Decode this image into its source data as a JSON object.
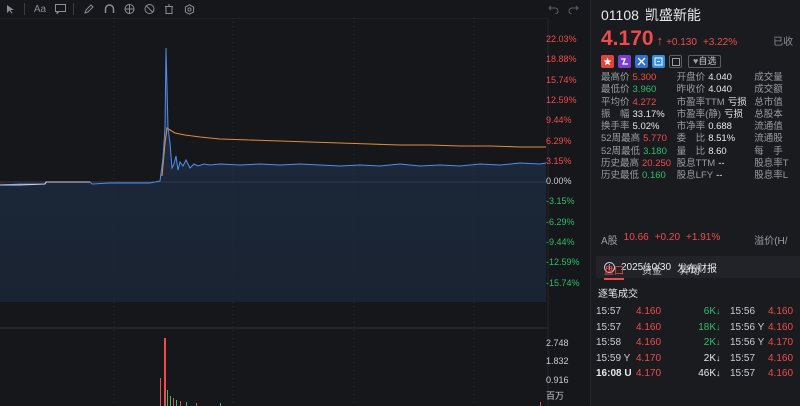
{
  "toolbar": {
    "icons": [
      "cursor-icon",
      "text-icon",
      "comment-icon",
      "pen-icon",
      "magnet-icon",
      "eye-icon",
      "hide-icon",
      "trash-icon",
      "settings-icon"
    ],
    "aa_label": "Aa"
  },
  "chart": {
    "pct_labels": [
      {
        "text": "22.03%",
        "color": "#f04b4b"
      },
      {
        "text": "18.88%",
        "color": "#f04b4b"
      },
      {
        "text": "15.74%",
        "color": "#f04b4b"
      },
      {
        "text": "12.59%",
        "color": "#f04b4b"
      },
      {
        "text": "9.44%",
        "color": "#f04b4b"
      },
      {
        "text": "6.29%",
        "color": "#f04b4b"
      },
      {
        "text": "3.15%",
        "color": "#f04b4b"
      },
      {
        "text": "0.00%",
        "color": "#c9ccd3"
      },
      {
        "text": "-3.15%",
        "color": "#2fbe6b"
      },
      {
        "text": "-6.29%",
        "color": "#2fbe6b"
      },
      {
        "text": "-9.44%",
        "color": "#2fbe6b"
      },
      {
        "text": "-12.59%",
        "color": "#2fbe6b"
      },
      {
        "text": "-15.74%",
        "color": "#2fbe6b"
      }
    ],
    "vol_labels": [
      "2.748",
      "1.832",
      "0.916"
    ],
    "vol_unit": "百万"
  },
  "stock": {
    "code": "01108",
    "name": "凯盛新能",
    "price": "4.170",
    "arrow": "↑",
    "change": "+0.130",
    "change_pct": "+3.22%",
    "status": "已收",
    "fav_label": "自选"
  },
  "stats": [
    [
      [
        "最高价",
        "5.300",
        "red"
      ],
      [
        "开盘价",
        "4.040",
        "white"
      ],
      [
        "成交量",
        "",
        "white"
      ]
    ],
    [
      [
        "最低价",
        "3.960",
        "green"
      ],
      [
        "昨收价",
        "4.040",
        "white"
      ],
      [
        "成交额",
        "",
        "white"
      ]
    ],
    [
      [
        "平均价",
        "4.272",
        "red"
      ],
      [
        "市盈率TTM",
        "亏损",
        "white"
      ],
      [
        "总市值",
        "",
        "white"
      ]
    ],
    [
      [
        "振　幅",
        "33.17%",
        "white"
      ],
      [
        "市盈率(静)",
        "亏损",
        "white"
      ],
      [
        "总股本",
        "",
        "white"
      ]
    ],
    [
      [
        "换手率",
        "5.02%",
        "white"
      ],
      [
        "市净率",
        "0.688",
        "white"
      ],
      [
        "流通值",
        "",
        "white"
      ]
    ],
    [
      [
        "52周最高",
        "5.770",
        "red"
      ],
      [
        "委　比",
        "8.51%",
        "white"
      ],
      [
        "流通股",
        "",
        "white"
      ]
    ],
    [
      [
        "52周最低",
        "3.180",
        "green"
      ],
      [
        "量　比",
        "8.60",
        "white"
      ],
      [
        "每　手",
        "",
        "white"
      ]
    ],
    [
      [
        "历史最高",
        "20.250",
        "red"
      ],
      [
        "股息TTM",
        "--",
        "white"
      ],
      [
        "股息率T",
        "",
        "white"
      ]
    ],
    [
      [
        "历史最低",
        "0.160",
        "green"
      ],
      [
        "股息LFY",
        "--",
        "white"
      ],
      [
        "股息率L",
        "",
        "white"
      ]
    ]
  ],
  "ashare": {
    "label": "A股",
    "price": "10.66",
    "change": "+0.20",
    "change_pct": "+1.91%",
    "right": "溢价(H/"
  },
  "notice": {
    "date": "2025/10/30",
    "text": "发布财报"
  },
  "tabs": [
    "盘口",
    "资金",
    "异动"
  ],
  "ticks_title": "逐笔成交",
  "ticks": [
    {
      "t1": "15:57",
      "p1": "4.160",
      "v": "6K",
      "dir": "↓",
      "vc": "green",
      "t2": "15:56",
      "p2": "4.160",
      "bold": false
    },
    {
      "t1": "15:57",
      "p1": "4.160",
      "v": "18K",
      "dir": "↓",
      "vc": "green",
      "t2": "15:56 Y",
      "p2": "4.160",
      "bold": false
    },
    {
      "t1": "15:58",
      "p1": "4.160",
      "v": "2K",
      "dir": "↓",
      "vc": "green",
      "t2": "15:56 Y",
      "p2": "4.170",
      "bold": false
    },
    {
      "t1": "15:59 Y",
      "p1": "4.170",
      "v": "2K",
      "dir": "↓",
      "vc": "white",
      "t2": "15:57",
      "p2": "4.160",
      "bold": false
    },
    {
      "t1": "16:08 U",
      "p1": "4.170",
      "v": "46K",
      "dir": "↓",
      "vc": "white",
      "t2": "15:57",
      "p2": "4.160",
      "bold": true
    }
  ]
}
